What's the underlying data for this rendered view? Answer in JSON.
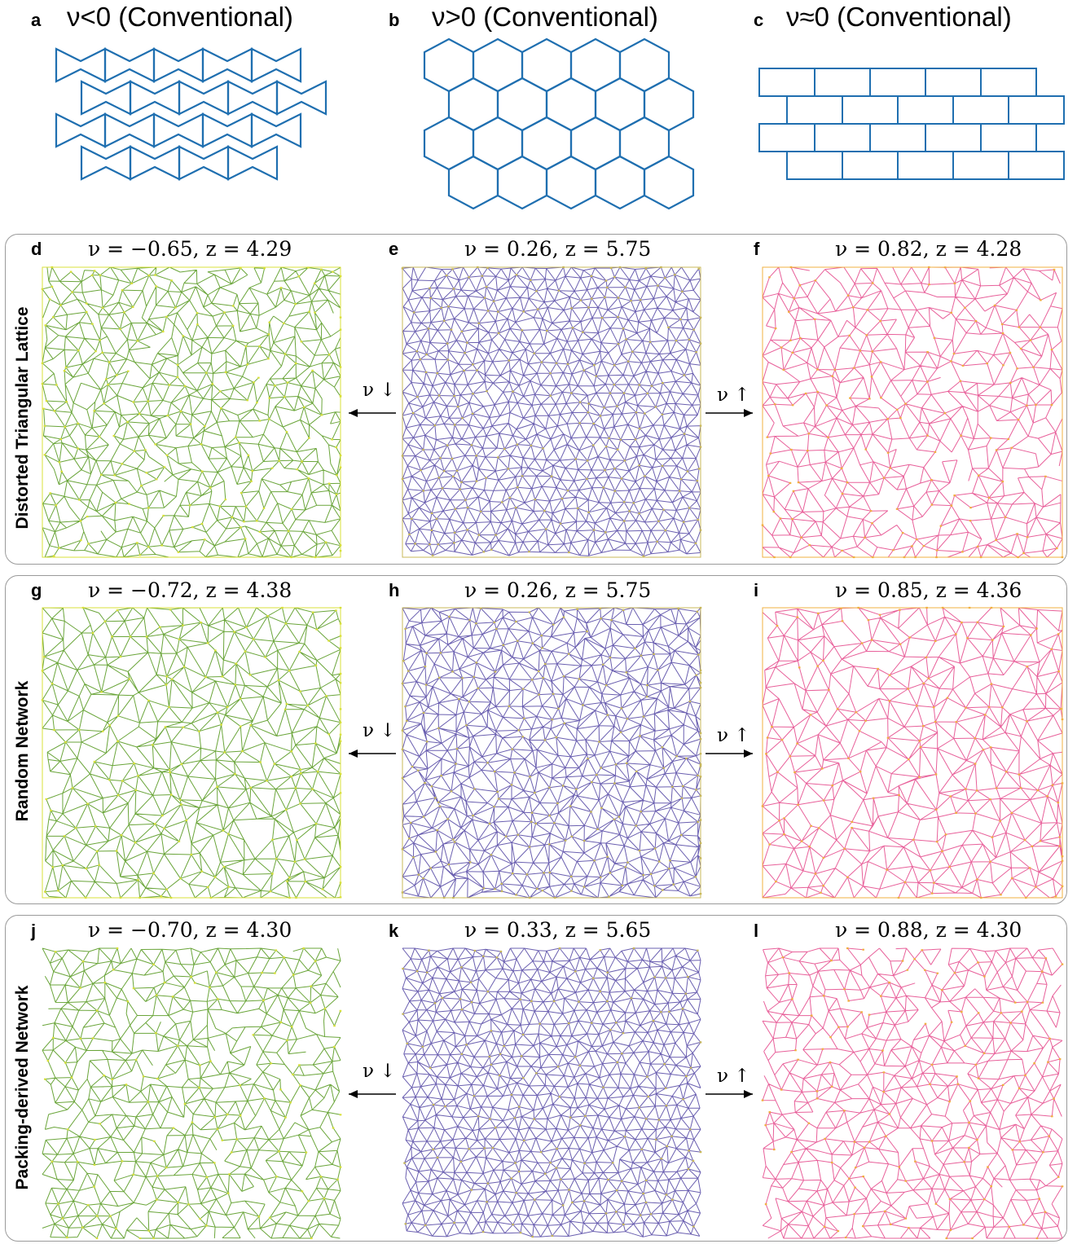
{
  "conventional": [
    {
      "label": "a",
      "title": "ν<0 (Conventional)",
      "structure": "re-entrant-honeycomb"
    },
    {
      "label": "b",
      "title": "ν>0 (Conventional)",
      "structure": "hexagonal-honeycomb"
    },
    {
      "label": "c",
      "title": "ν≈0 (Conventional)",
      "structure": "brick-lattice"
    }
  ],
  "line_color": "#1f6fb0",
  "rows": [
    {
      "name": "Distorted Triangular Lattice",
      "panels": [
        {
          "label": "d",
          "title": "ν = −0.65, z = 4.29",
          "scheme": "green"
        },
        {
          "label": "e",
          "title": "ν = 0.26, z = 5.75",
          "scheme": "purple"
        },
        {
          "label": "f",
          "title": "ν = 0.82, z = 4.28",
          "scheme": "pink"
        }
      ],
      "arrow_left": "ν ↓",
      "arrow_right": "ν ↑"
    },
    {
      "name": "Random Network",
      "panels": [
        {
          "label": "g",
          "title": "ν = −0.72, z = 4.38",
          "scheme": "green"
        },
        {
          "label": "h",
          "title": "ν = 0.26, z = 5.75",
          "scheme": "purple"
        },
        {
          "label": "i",
          "title": "ν = 0.85, z = 4.36",
          "scheme": "pink"
        }
      ],
      "arrow_left": "ν ↓",
      "arrow_right": "ν ↑"
    },
    {
      "name": "Packing-derived Network",
      "panels": [
        {
          "label": "j",
          "title": "ν = −0.70, z = 4.30",
          "scheme": "green"
        },
        {
          "label": "k",
          "title": "ν = 0.33, z = 5.65",
          "scheme": "purple"
        },
        {
          "label": "l",
          "title": "ν = 0.88, z = 4.30",
          "scheme": "pink"
        }
      ],
      "arrow_left": "ν ↓",
      "arrow_right": "ν ↑"
    }
  ],
  "schemes": {
    "green": {
      "stroke": "#6aa53a",
      "node": "#d8e03a"
    },
    "purple": {
      "stroke": "#6a5fb0",
      "node": "#c8b85a"
    },
    "pink": {
      "stroke": "#e8609a",
      "node": "#f0b040"
    }
  }
}
